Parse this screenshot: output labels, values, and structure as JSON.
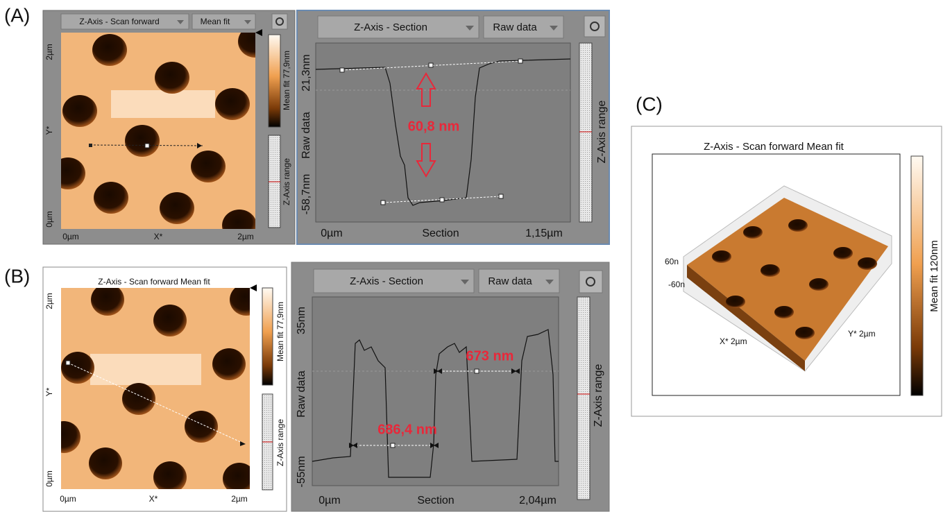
{
  "panel_labels": [
    "(A)",
    "(B)",
    "(C)"
  ],
  "panel_a": {
    "image": {
      "channel": "Z-Axis - Scan forward",
      "mode": "Mean fit",
      "y_axis": [
        "2µm",
        "Y*",
        "0µm"
      ],
      "x_axis": [
        "0µm",
        "X*",
        "2µm"
      ],
      "colorbar": "Mean fit 77,9nm",
      "range_bar": "Z-Axis range"
    },
    "profile": {
      "channel": "Z-Axis - Section",
      "mode": "Raw data",
      "y_axis": {
        "top": "21,3nm",
        "label": "Raw data",
        "bottom": "-58,7nm"
      },
      "x_axis": [
        "0µm",
        "Section",
        "1,15µm"
      ],
      "annotations": [
        "60,8 nm"
      ],
      "range_bar": "Z-Axis range"
    }
  },
  "panel_b": {
    "image": {
      "title": "Z-Axis - Scan forward   Mean fit",
      "y_axis": [
        "2µm",
        "Y*",
        "0µm"
      ],
      "x_axis": [
        "0µm",
        "X*",
        "2µm"
      ],
      "colorbar": "Mean fit 77,9nm",
      "range_bar": "Z-Axis range"
    },
    "profile": {
      "channel": "Z-Axis - Section",
      "mode": "Raw data",
      "y_axis": {
        "top": "35nm",
        "label": "Raw data",
        "bottom": "-55nm"
      },
      "x_axis": [
        "0µm",
        "Section",
        "2,04µm"
      ],
      "annotations": [
        "673 nm",
        "686,4 nm"
      ],
      "range_bar": "Z-Axis range"
    }
  },
  "panel_c": {
    "title": "Z-Axis - Scan forward   Mean fit",
    "z_axis": [
      "60n",
      "-60n"
    ],
    "x_axis": "X* 2µm",
    "y_axis": "Y* 2µm",
    "colorbar": "Mean fit 120nm"
  }
}
